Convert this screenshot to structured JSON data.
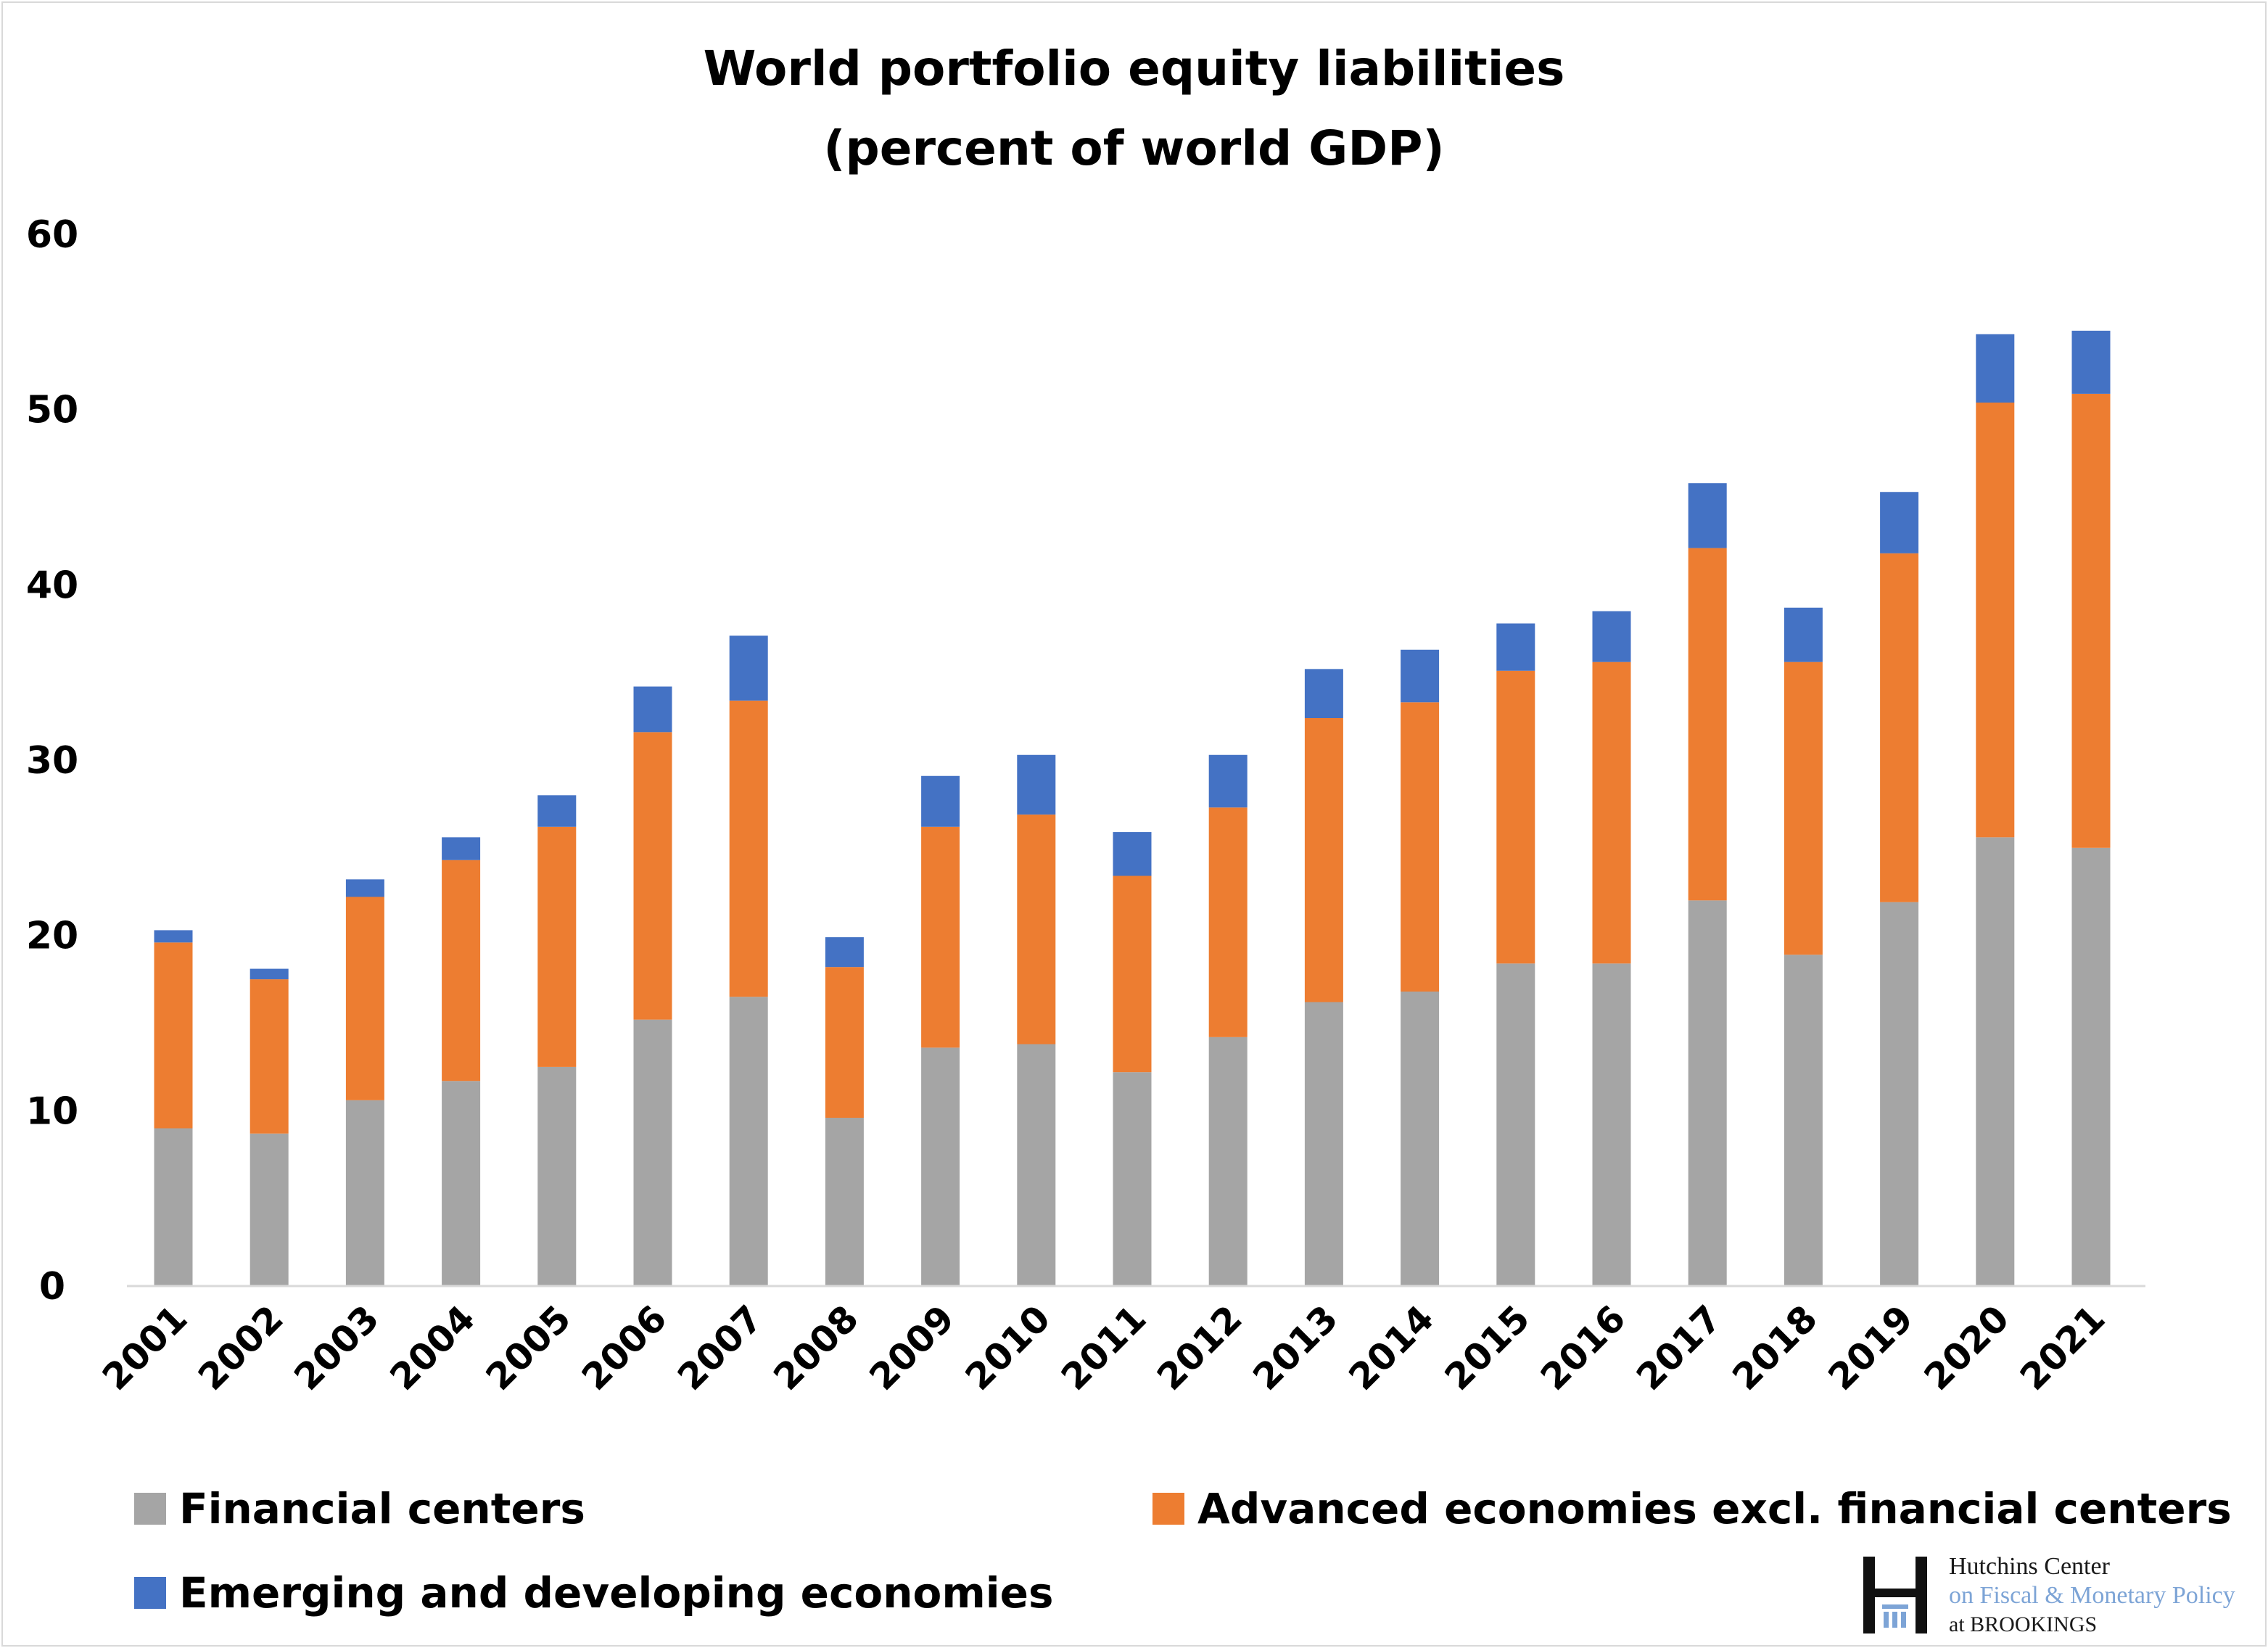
{
  "chart_data": {
    "type": "bar",
    "stacked": true,
    "title": "World portfolio equity liabilities\n(percent of world GDP)",
    "title_lines": [
      "World portfolio equity liabilities",
      "(percent of world GDP)"
    ],
    "xlabel": "",
    "ylabel": "",
    "ylim": [
      0,
      60
    ],
    "yticks": [
      0,
      10,
      20,
      30,
      40,
      50,
      60
    ],
    "grid": false,
    "legend_position": "bottom",
    "categories": [
      "2001",
      "2002",
      "2003",
      "2004",
      "2005",
      "2006",
      "2007",
      "2008",
      "2009",
      "2010",
      "2011",
      "2012",
      "2013",
      "2014",
      "2015",
      "2016",
      "2017",
      "2018",
      "2019",
      "2020",
      "2021"
    ],
    "series": [
      {
        "name": "Financial centers",
        "color": "#a5a5a5",
        "values": [
          9.0,
          8.7,
          10.6,
          11.7,
          12.5,
          15.2,
          16.5,
          9.6,
          13.6,
          13.8,
          12.2,
          14.2,
          16.2,
          16.8,
          18.4,
          18.4,
          22.0,
          18.9,
          21.9,
          25.6,
          25.0
        ]
      },
      {
        "name": "Advanced economies excl. financial centers",
        "color": "#ed7d31",
        "values": [
          10.6,
          8.8,
          11.6,
          12.6,
          13.7,
          16.4,
          16.9,
          8.6,
          12.6,
          13.1,
          11.2,
          13.1,
          16.2,
          16.5,
          16.7,
          17.2,
          20.1,
          16.7,
          19.9,
          24.8,
          25.9
        ]
      },
      {
        "name": "Emerging and developing economies",
        "color": "#4472c4",
        "values": [
          0.7,
          0.6,
          1.0,
          1.3,
          1.8,
          2.6,
          3.7,
          1.7,
          2.9,
          3.4,
          2.5,
          3.0,
          2.8,
          3.0,
          2.7,
          2.9,
          3.7,
          3.1,
          3.5,
          3.9,
          3.6
        ]
      }
    ]
  },
  "logo": {
    "line1": "Hutchins Center",
    "line2": "on Fiscal & Monetary Policy",
    "line3": "at BROOKINGS"
  }
}
